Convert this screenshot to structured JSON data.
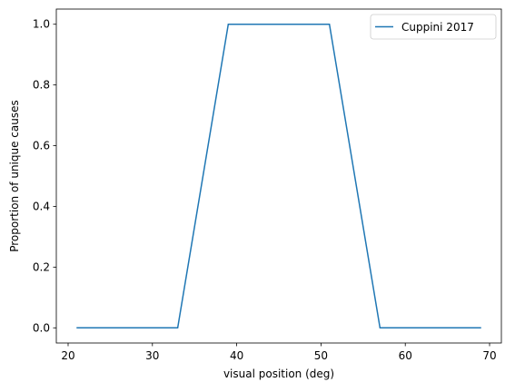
{
  "chart_data": {
    "type": "line",
    "title": "",
    "xlabel": "visual position (deg)",
    "ylabel": "Proportion of unique causes",
    "xlim": [
      18.6,
      71.4
    ],
    "ylim": [
      -0.05,
      1.05
    ],
    "xticks": [
      20,
      30,
      40,
      50,
      60,
      70
    ],
    "yticks": [
      0.0,
      0.2,
      0.4,
      0.6,
      0.8,
      1.0
    ],
    "xtick_labels": [
      "20",
      "30",
      "40",
      "50",
      "60",
      "70"
    ],
    "ytick_labels": [
      "0.0",
      "0.2",
      "0.4",
      "0.6",
      "0.8",
      "1.0"
    ],
    "grid": false,
    "legend_position": "top-right",
    "series": [
      {
        "name": "Cuppini 2017",
        "color": "#1f77b4",
        "x": [
          21,
          27,
          33,
          39,
          45,
          51,
          57,
          63,
          69
        ],
        "y": [
          0,
          0,
          0,
          1,
          1,
          1,
          0,
          0,
          0
        ]
      }
    ]
  }
}
